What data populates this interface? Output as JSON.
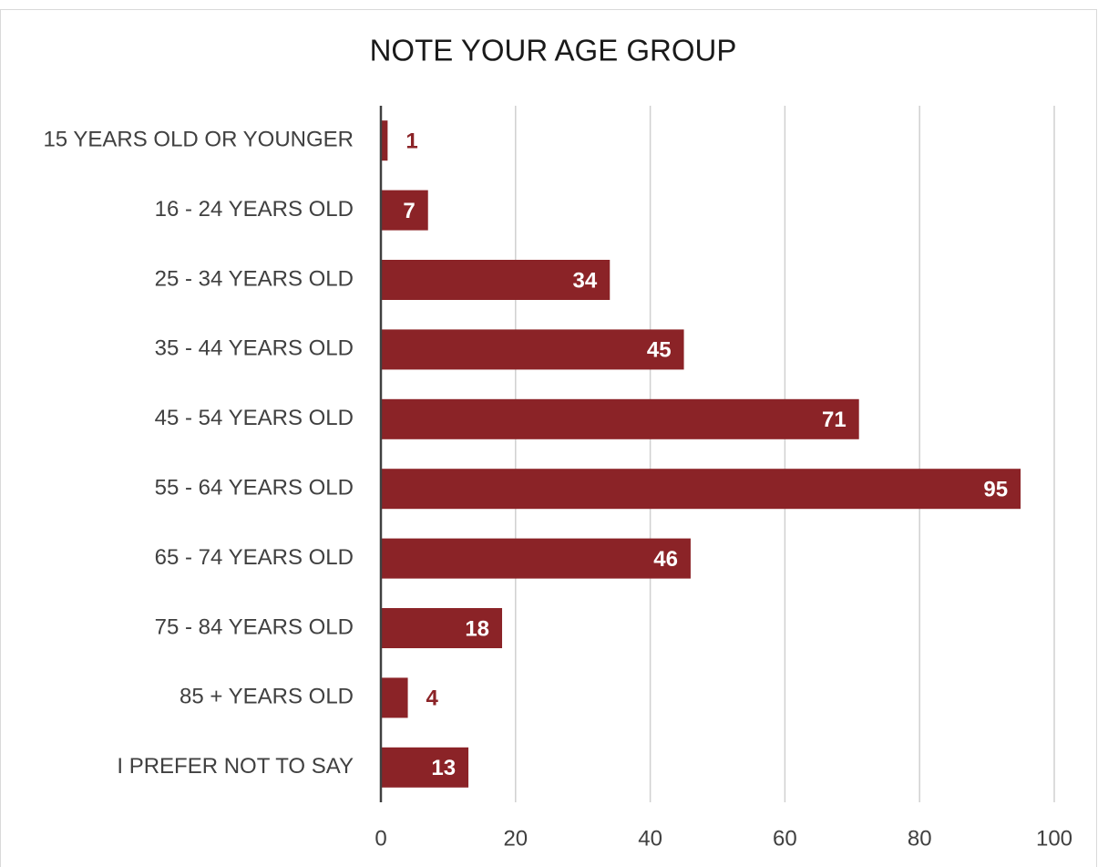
{
  "chart_data": {
    "type": "barh",
    "title": "NOTE YOUR AGE GROUP",
    "categories": [
      "15 YEARS OLD OR YOUNGER",
      "16 - 24 YEARS OLD",
      "25 - 34 YEARS OLD",
      "35 - 44 YEARS OLD",
      "45 - 54 YEARS OLD",
      "55 - 64 YEARS OLD",
      "65 - 74 YEARS OLD",
      "75 - 84 YEARS OLD",
      "85 + YEARS OLD",
      "I PREFER NOT TO SAY"
    ],
    "values": [
      1,
      7,
      34,
      45,
      71,
      95,
      46,
      18,
      4,
      13
    ],
    "color": "#8b2327",
    "xlim": [
      0,
      100
    ],
    "xticks": [
      0,
      20,
      40,
      60,
      80,
      100
    ],
    "grid": true
  }
}
